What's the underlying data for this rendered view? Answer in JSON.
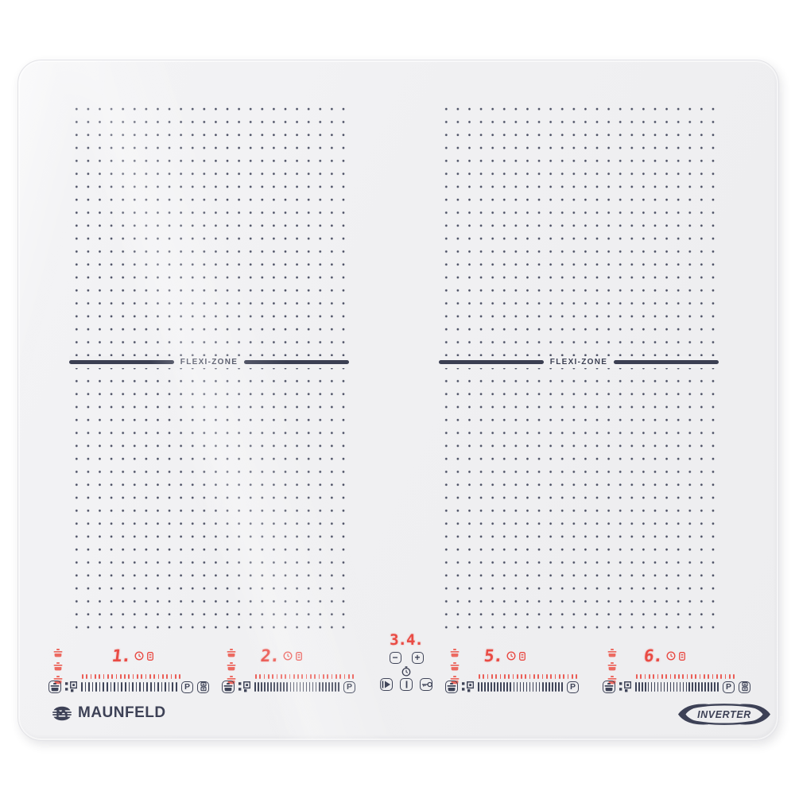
{
  "brand": {
    "name": "MAUNFELD"
  },
  "badge": {
    "label": "INVERTER"
  },
  "surface": {
    "flexi_left_label": "FLEXI-ZONE",
    "flexi_right_label": "FLEXI-ZONE"
  },
  "zones": [
    {
      "id": "zone-1",
      "display": "1.",
      "boost_label": "P",
      "has_bridge_key": true,
      "indicators": [
        "keep-warm-pot-icon",
        "keep-warm-pot-icon",
        "keep-warm-pot-icon",
        "timer-clock-icon",
        "boost-indicator-icon"
      ]
    },
    {
      "id": "zone-2",
      "display": "2.",
      "boost_label": "P",
      "has_bridge_key": false,
      "indicators": [
        "keep-warm-pot-icon",
        "keep-warm-pot-icon",
        "keep-warm-pot-icon",
        "timer-clock-icon",
        "boost-indicator-icon"
      ]
    },
    {
      "id": "zone-5",
      "display": "5.",
      "boost_label": "P",
      "has_bridge_key": false,
      "indicators": [
        "keep-warm-pot-icon",
        "keep-warm-pot-icon",
        "keep-warm-pot-icon",
        "timer-clock-icon",
        "boost-indicator-icon"
      ]
    },
    {
      "id": "zone-6",
      "display": "6.",
      "boost_label": "P",
      "has_bridge_key": true,
      "indicators": [
        "keep-warm-pot-icon",
        "keep-warm-pot-icon",
        "keep-warm-pot-icon",
        "timer-clock-icon",
        "boost-indicator-icon"
      ]
    }
  ],
  "center_controls": {
    "timer_display": "3.4.",
    "minus_label": "−",
    "plus_label": "+",
    "icons": [
      "stopwatch-icon",
      "pause-play-icon",
      "power-icon",
      "key-lock-icon"
    ]
  },
  "colors": {
    "led_red": "#e94b44",
    "print_navy": "#3d4155",
    "glass": "#f0f0f2"
  }
}
